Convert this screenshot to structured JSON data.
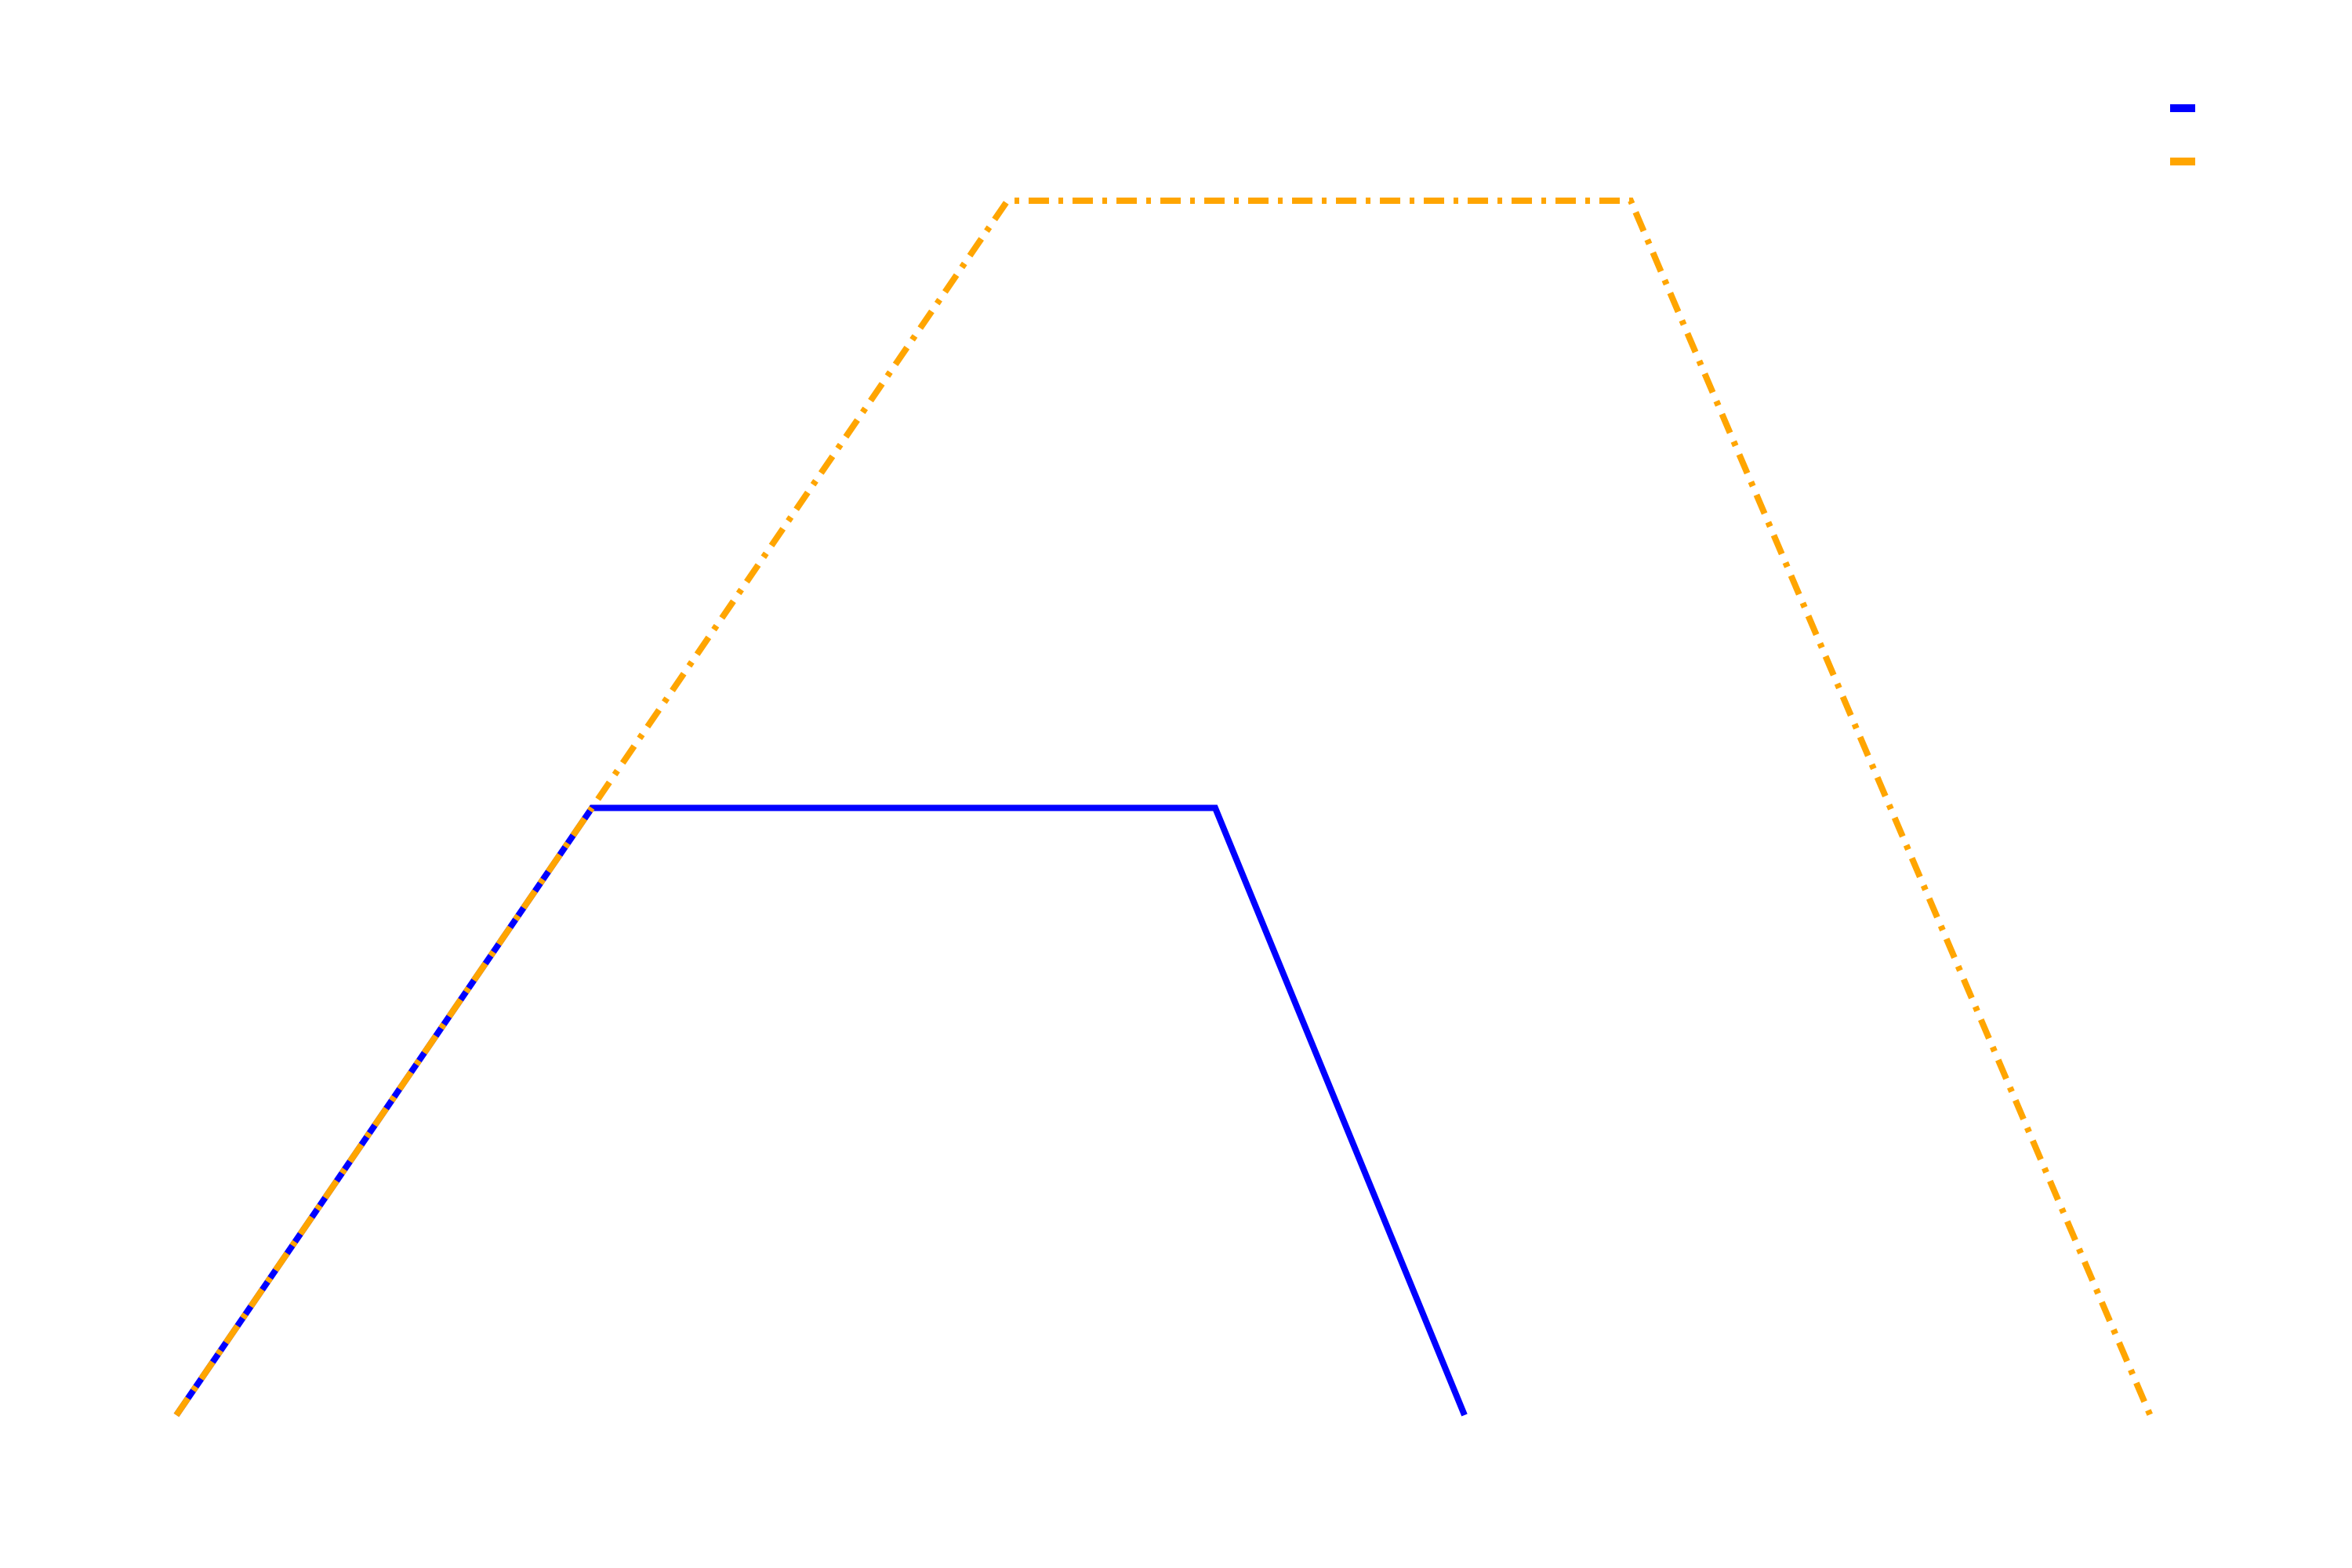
{
  "chart_data": {
    "type": "line",
    "title": "",
    "xlabel": "",
    "ylabel": "",
    "xlim": [
      0,
      10
    ],
    "ylim": [
      0,
      10
    ],
    "grid": false,
    "axes_visible": false,
    "legend": {
      "placement": "top-right",
      "show_labels": false
    },
    "series": [
      {
        "x": [
          0,
          2,
          5,
          6.2
        ],
        "y": [
          0,
          5,
          5,
          0
        ],
        "color": "#0000ff",
        "line_style": "solid"
      },
      {
        "x": [
          0,
          4,
          7,
          9.5
        ],
        "y": [
          0,
          10,
          10,
          0
        ],
        "color": "#ffa500",
        "line_style": "dashdot"
      }
    ]
  }
}
